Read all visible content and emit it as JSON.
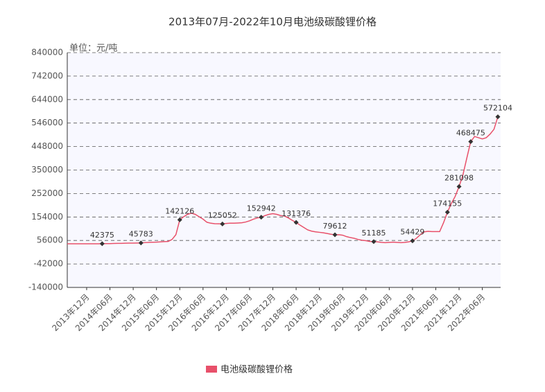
{
  "chart_data": {
    "type": "line",
    "title": "2013年07月-2022年10月电池级碳酸锂价格",
    "y_label": "单位：元/吨",
    "categories": [
      null,
      null,
      null,
      null,
      null,
      "2013年12月",
      null,
      null,
      null,
      null,
      null,
      "2014年06月",
      null,
      null,
      null,
      null,
      null,
      "2014年12月",
      null,
      null,
      null,
      null,
      null,
      "2015年06月",
      null,
      null,
      null,
      null,
      null,
      "2015年12月",
      null,
      null,
      null,
      null,
      null,
      "2016年06月",
      null,
      null,
      null,
      null,
      null,
      "2016年12月",
      null,
      null,
      null,
      null,
      null,
      "2017年06月",
      null,
      null,
      null,
      null,
      null,
      "2017年12月",
      null,
      null,
      null,
      null,
      null,
      "2018年06月",
      null,
      null,
      null,
      null,
      null,
      "2018年12月",
      null,
      null,
      null,
      null,
      null,
      "2019年06月",
      null,
      null,
      null,
      null,
      null,
      "2019年12月",
      null,
      null,
      null,
      null,
      null,
      "2020年06月",
      null,
      null,
      null,
      null,
      null,
      "2020年12月",
      null,
      null,
      null,
      null,
      null,
      "2021年06月",
      null,
      null,
      null,
      null,
      null,
      "2021年12月",
      null,
      null,
      null,
      null,
      null,
      "2022年06月",
      null,
      null,
      null,
      null
    ],
    "series": [
      {
        "name": "电池级碳酸锂价格",
        "color": "#e8506a",
        "values": [
          42000,
          42000,
          42000,
          42000,
          42000,
          42000,
          42000,
          42000,
          42000,
          42375,
          43000,
          43000,
          43500,
          44000,
          44000,
          44500,
          45000,
          45000,
          45500,
          45783,
          47000,
          48000,
          48500,
          49000,
          50000,
          51000,
          52000,
          60000,
          80000,
          142126,
          155000,
          165000,
          170000,
          165000,
          155000,
          145000,
          132000,
          128000,
          126000,
          125500,
          125052,
          127000,
          128000,
          128000,
          129000,
          130000,
          133000,
          138000,
          145000,
          150000,
          152942,
          160000,
          165000,
          168000,
          165000,
          160000,
          158000,
          150000,
          140000,
          131376,
          120000,
          110000,
          100000,
          95000,
          92000,
          90000,
          88000,
          85000,
          82000,
          79612,
          80000,
          78000,
          72000,
          68000,
          65000,
          60000,
          57000,
          55000,
          52000,
          51185,
          50000,
          48000,
          47000,
          48000,
          49000,
          48000,
          47000,
          48000,
          50000,
          54429,
          65000,
          80000,
          92000,
          94000,
          93000,
          93000,
          93000,
          130000,
          174155,
          210000,
          240000,
          281098,
          330000,
          400000,
          468475,
          490000,
          485000,
          480000,
          485000,
          500000,
          520000,
          572104
        ],
        "value_labels": [
          null,
          null,
          null,
          null,
          null,
          null,
          null,
          null,
          null,
          "42375",
          null,
          null,
          null,
          null,
          null,
          null,
          null,
          null,
          null,
          "45783",
          null,
          null,
          null,
          null,
          null,
          null,
          null,
          null,
          null,
          "142126",
          null,
          null,
          null,
          null,
          null,
          null,
          null,
          null,
          null,
          null,
          "125052",
          null,
          null,
          null,
          null,
          null,
          null,
          null,
          null,
          null,
          "152942",
          null,
          null,
          null,
          null,
          null,
          null,
          null,
          null,
          "131376",
          null,
          null,
          null,
          null,
          null,
          null,
          null,
          null,
          null,
          "79612",
          null,
          null,
          null,
          null,
          null,
          null,
          null,
          null,
          null,
          "51185",
          null,
          null,
          null,
          null,
          null,
          null,
          null,
          null,
          null,
          "54429",
          null,
          null,
          null,
          null,
          null,
          null,
          null,
          null,
          "174155",
          null,
          null,
          "281098",
          null,
          null,
          "468475",
          null,
          null,
          null,
          null,
          null,
          null,
          "572104"
        ]
      }
    ],
    "ylim": [
      -140000,
      840000
    ],
    "yticks": [
      -140000,
      -42000,
      56000,
      154000,
      252000,
      350000,
      448000,
      546000,
      644000,
      742000,
      840000
    ],
    "grid": true,
    "legend": "bottom"
  }
}
